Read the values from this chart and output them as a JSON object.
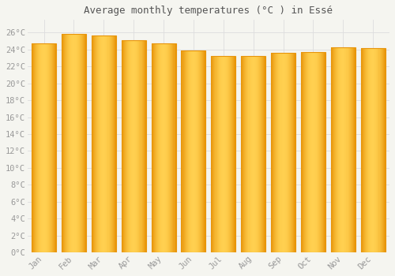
{
  "title": "Average monthly temperatures (°C ) in Essé",
  "months": [
    "Jan",
    "Feb",
    "Mar",
    "Apr",
    "May",
    "Jun",
    "Jul",
    "Aug",
    "Sep",
    "Oct",
    "Nov",
    "Dec"
  ],
  "values": [
    24.7,
    25.8,
    25.7,
    25.1,
    24.7,
    23.9,
    23.2,
    23.2,
    23.6,
    23.7,
    24.3,
    24.2
  ],
  "bar_color": "#FDB927",
  "bar_edge_color": "#E8950A",
  "bar_gradient_left": "#E8950A",
  "bar_gradient_mid": "#FFD050",
  "background_color": "#f5f5f0",
  "plot_bg_color": "#f5f5f0",
  "grid_color": "#dddddd",
  "ytick_labels": [
    "0°C",
    "2°C",
    "4°C",
    "6°C",
    "8°C",
    "10°C",
    "12°C",
    "14°C",
    "16°C",
    "18°C",
    "20°C",
    "22°C",
    "24°C",
    "26°C"
  ],
  "ytick_values": [
    0,
    2,
    4,
    6,
    8,
    10,
    12,
    14,
    16,
    18,
    20,
    22,
    24,
    26
  ],
  "ylim": [
    0,
    27.5
  ],
  "title_fontsize": 9,
  "tick_fontsize": 7.5,
  "tick_color": "#999999",
  "title_color": "#555555"
}
